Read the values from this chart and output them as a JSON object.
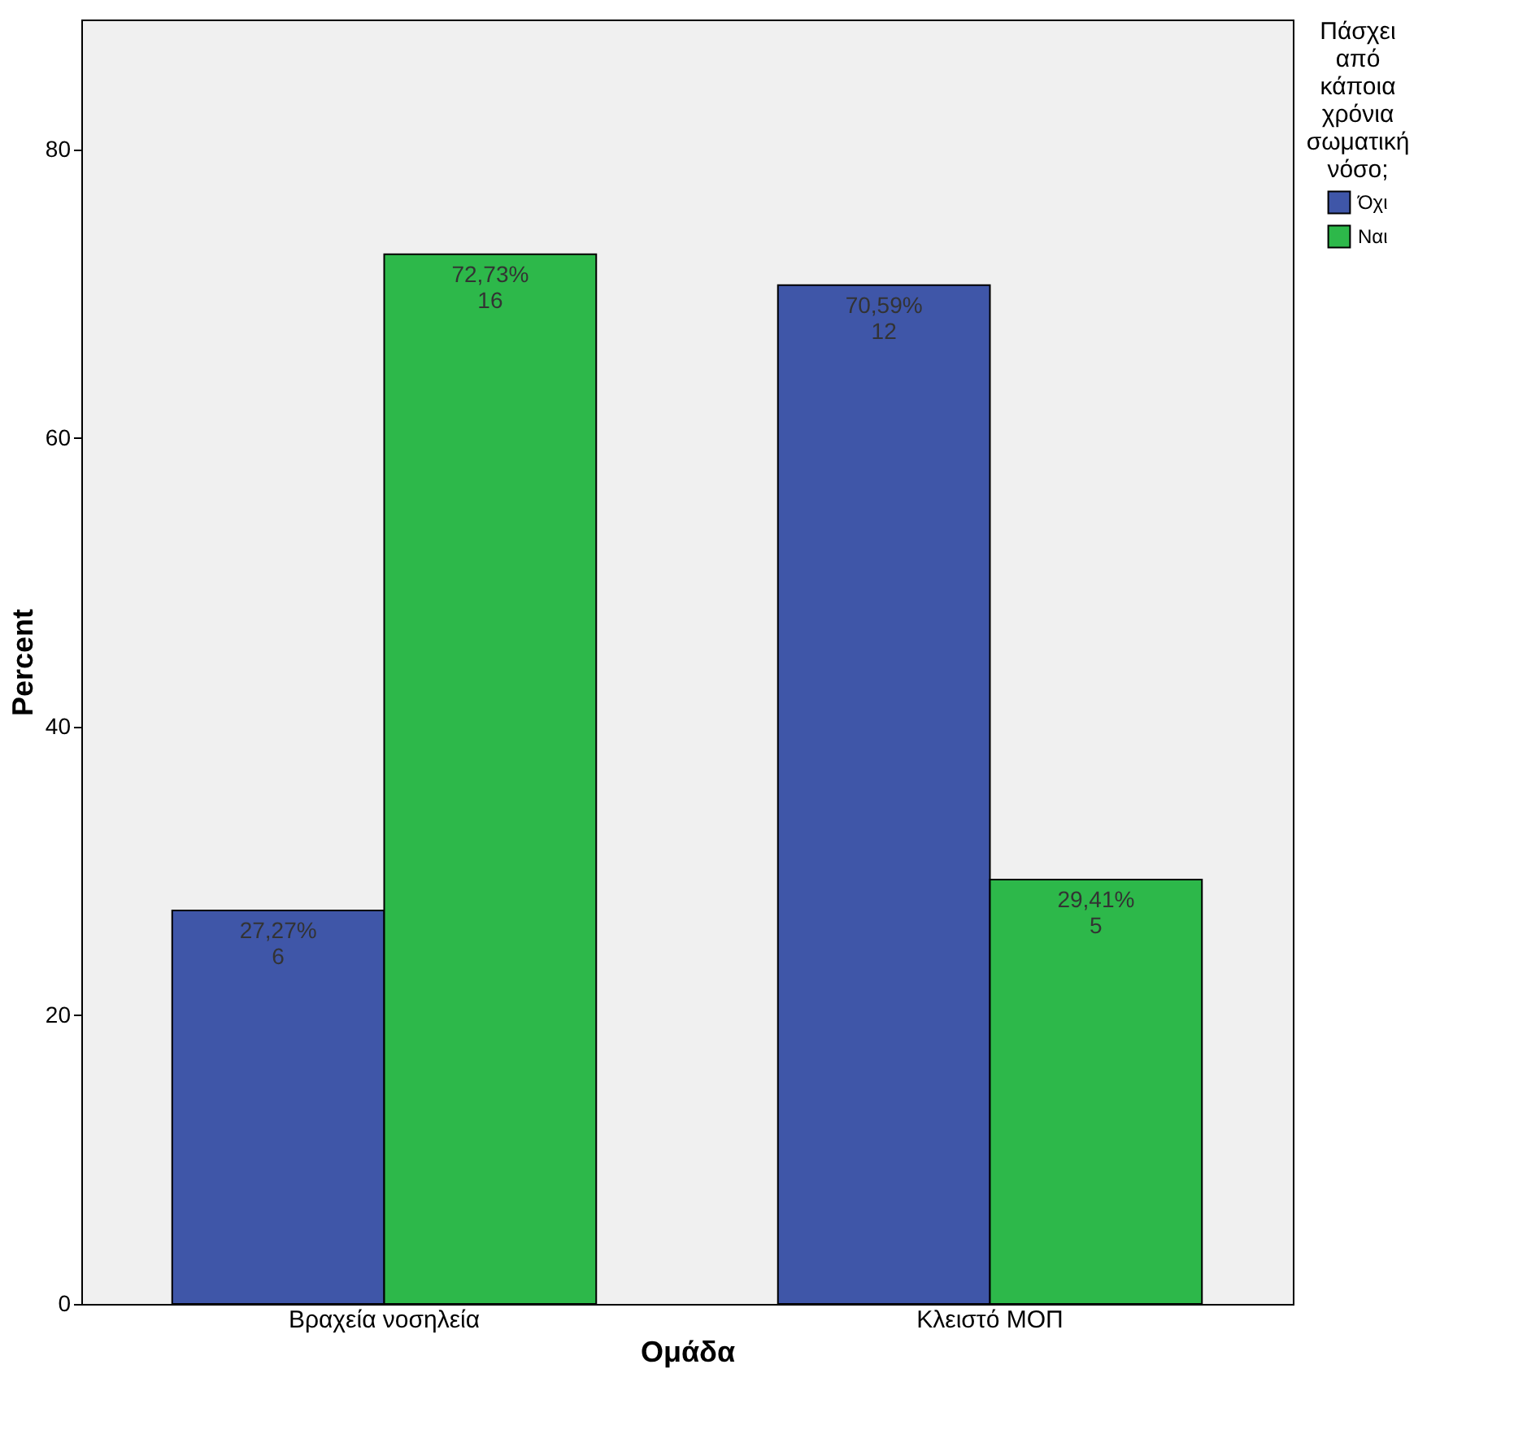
{
  "chart_data": {
    "type": "bar",
    "xlabel": "Ομάδα",
    "ylabel": "Percent",
    "legend_title": "Πάσχει από κάποια χρόνια σωματική νόσο;",
    "categories": [
      "Βραχεία νοσηλεία",
      "Κλειστό ΜΟΠ"
    ],
    "series": [
      {
        "name": "Όχι",
        "color": "#3f56a8",
        "values": [
          27.27,
          70.59
        ],
        "value_labels": [
          "27,27%\n6",
          "70,59%\n12"
        ]
      },
      {
        "name": "Ναι",
        "color": "#2db84a",
        "values": [
          72.73,
          29.41
        ],
        "value_labels": [
          "72,73%\n16",
          "29,41%\n5"
        ]
      }
    ],
    "ylim": [
      0,
      89
    ],
    "yticks": [
      0,
      20,
      40,
      60,
      80
    ],
    "grid": false,
    "legend": "top right"
  }
}
